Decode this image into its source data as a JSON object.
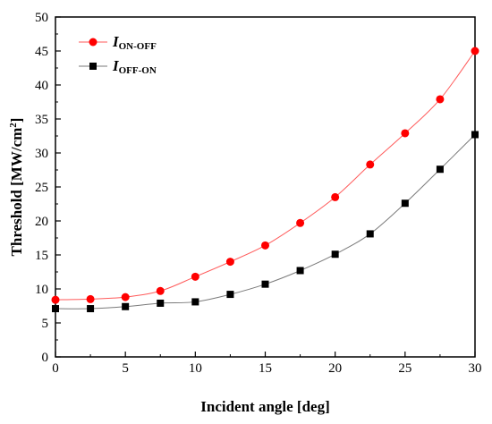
{
  "chart_data": {
    "type": "line",
    "xlabel": "Incident angle [deg]",
    "ylabel": "Threshold [MW/cm",
    "ylabel_sup": "2",
    "ylabel_close": "]",
    "xlim": [
      0,
      30
    ],
    "ylim": [
      0,
      50
    ],
    "x_ticks": [
      "0",
      "5",
      "10",
      "15",
      "20",
      "25",
      "30"
    ],
    "y_ticks": [
      "0",
      "5",
      "10",
      "15",
      "20",
      "25",
      "30",
      "35",
      "40",
      "45",
      "50"
    ],
    "grid": false,
    "legend_position": "top-left",
    "x": [
      0,
      2.5,
      5,
      7.5,
      10,
      12.5,
      15,
      17.5,
      20,
      22.5,
      25,
      27.5,
      30
    ],
    "series": [
      {
        "name_main": "I",
        "name_sub": "ON-OFF",
        "marker": "circle",
        "marker_color": "#ff0000",
        "line_color": "#ff5a5a",
        "values": [
          8.4,
          8.5,
          8.8,
          9.7,
          11.8,
          14.0,
          16.4,
          19.7,
          23.5,
          28.3,
          32.9,
          37.9,
          45.0
        ]
      },
      {
        "name_main": "I",
        "name_sub": "OFF-ON",
        "marker": "square",
        "marker_color": "#000000",
        "line_color": "#7a7a7a",
        "values": [
          7.1,
          7.1,
          7.4,
          7.9,
          8.1,
          9.2,
          10.7,
          12.7,
          15.1,
          18.1,
          22.6,
          27.6,
          32.7
        ]
      }
    ]
  }
}
